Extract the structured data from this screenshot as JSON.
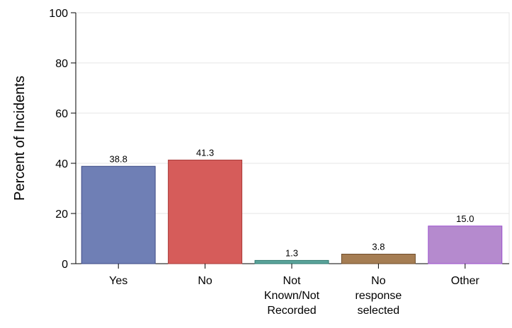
{
  "chart_data": {
    "type": "bar",
    "title": "",
    "xlabel": "",
    "ylabel": "Percent of Incidents",
    "ylim": [
      0,
      100
    ],
    "yticks": [
      0,
      20,
      40,
      60,
      80,
      100
    ],
    "grid": true,
    "categories": [
      [
        "Yes"
      ],
      [
        "No"
      ],
      [
        "Not",
        "Known/Not",
        "Recorded"
      ],
      [
        "No",
        "response",
        "selected"
      ],
      [
        "Other"
      ]
    ],
    "values": [
      38.8,
      41.3,
      1.3,
      3.8,
      15.0
    ],
    "data_labels": [
      "38.8",
      "41.3",
      "1.3",
      "3.8",
      "15.0"
    ],
    "colors": [
      "#6f7fb5",
      "#d65c5a",
      "#5aa39a",
      "#a57d53",
      "#b58ace"
    ],
    "edge_colors": [
      "#3d4a86",
      "#a83a38",
      "#2f7a70",
      "#6f4d2a",
      "#9c4fcf"
    ]
  }
}
